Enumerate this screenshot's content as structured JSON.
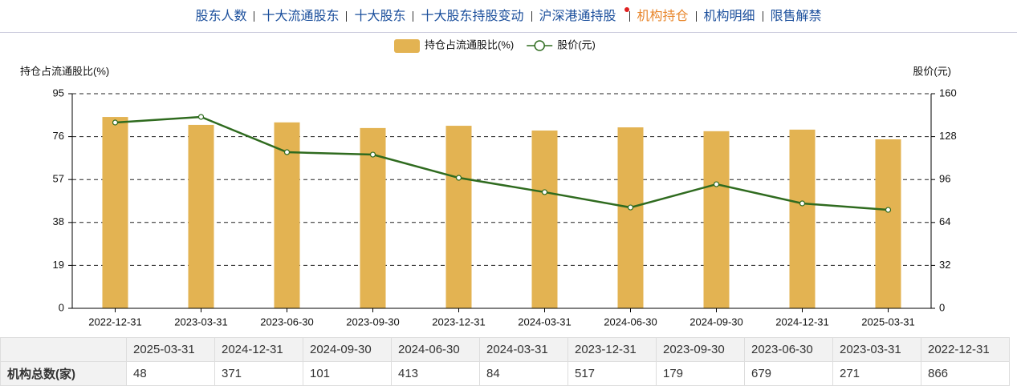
{
  "nav": {
    "items": [
      "股东人数",
      "十大流通股东",
      "十大股东",
      "十大股东持股变动",
      "沪深港通持股",
      "机构持仓",
      "机构明细",
      "限售解禁"
    ],
    "active": 5
  },
  "chart_data": {
    "type": "combo",
    "categories": [
      "2022-12-31",
      "2023-03-31",
      "2023-06-30",
      "2023-09-30",
      "2023-12-31",
      "2024-03-31",
      "2024-06-30",
      "2024-09-30",
      "2024-12-31",
      "2025-03-31"
    ],
    "series": [
      {
        "name": "持仓占流通股比(%)",
        "type": "bar",
        "color": "#e3b352",
        "values": [
          84.7,
          81.2,
          82.3,
          79.8,
          80.8,
          78.7,
          80.1,
          78.4,
          79.1,
          74.8
        ]
      },
      {
        "name": "股价(元)",
        "type": "line",
        "axis": "y2",
        "color": "#2f6b1f",
        "values": [
          138.5,
          142.7,
          116.4,
          114.6,
          97.3,
          86.6,
          75.2,
          92.5,
          78.2,
          73.4
        ]
      }
    ],
    "y_label": "持仓占流通股比(%)",
    "y2_label": "股价(元)",
    "ylim": [
      0,
      95
    ],
    "yticks": [
      0,
      19,
      38,
      57,
      76,
      95
    ],
    "y2lim": [
      0,
      160
    ],
    "y2ticks": [
      0,
      32,
      64,
      96,
      128,
      160
    ],
    "grid": true
  },
  "table": {
    "header": [
      "2025-03-31",
      "2024-12-31",
      "2024-09-30",
      "2024-06-30",
      "2024-03-31",
      "2023-12-31",
      "2023-09-30",
      "2023-06-30",
      "2023-03-31",
      "2022-12-31"
    ],
    "rows": [
      {
        "label": "机构总数(家)",
        "values": [
          48,
          371,
          101,
          413,
          84,
          517,
          179,
          679,
          271,
          866
        ]
      }
    ]
  }
}
